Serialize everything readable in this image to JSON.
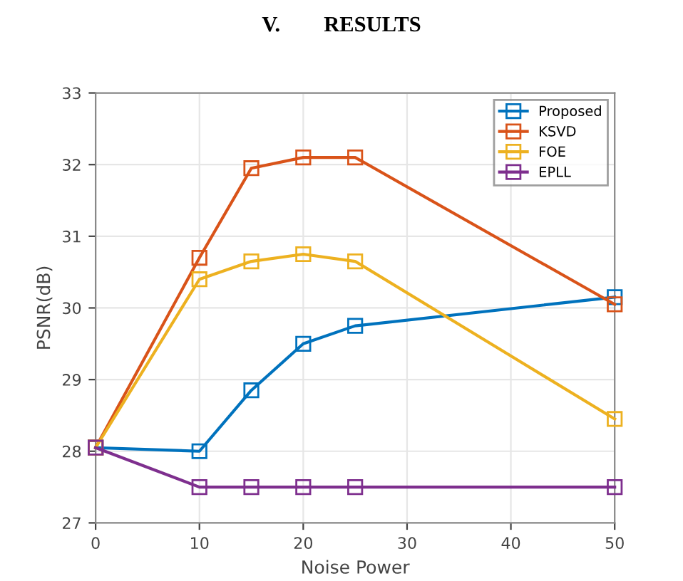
{
  "chart_data": {
    "type": "line",
    "title": "V.        RESULTS",
    "xlabel": "Noise Power",
    "ylabel": "PSNR(dB)",
    "x": [
      0,
      10,
      15,
      20,
      25,
      50
    ],
    "series": [
      {
        "name": "Proposed",
        "color": "#0072bd",
        "values": [
          28.05,
          28.0,
          28.85,
          29.5,
          29.75,
          30.15
        ]
      },
      {
        "name": "KSVD",
        "color": "#d95319",
        "values": [
          28.05,
          30.7,
          31.95,
          32.1,
          32.1,
          30.05
        ]
      },
      {
        "name": "FOE",
        "color": "#edb120",
        "values": [
          28.05,
          30.4,
          30.65,
          30.75,
          30.65,
          28.45
        ]
      },
      {
        "name": "EPLL",
        "color": "#7e2f8e",
        "values": [
          28.05,
          27.5,
          27.5,
          27.5,
          27.5,
          27.5
        ]
      }
    ],
    "xlim": [
      0,
      50
    ],
    "xticks": [
      0,
      10,
      20,
      30,
      40,
      50
    ],
    "ylim": [
      27,
      33
    ],
    "yticks": [
      27,
      28,
      29,
      30,
      31,
      32,
      33
    ],
    "grid": true,
    "legend": "top right",
    "marker": "square",
    "line_style": "solid"
  }
}
